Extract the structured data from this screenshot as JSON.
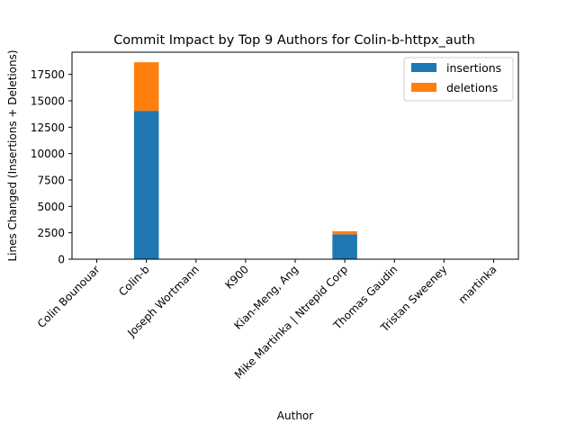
{
  "chart_data": {
    "type": "bar",
    "stacked": true,
    "title": "Commit Impact by Top 9 Authors for Colin-b-httpx_auth",
    "xlabel": "Author",
    "ylabel": "Lines Changed (Insertions + Deletions)",
    "categories": [
      "Colin Bounouar",
      "Colin-b",
      "Joseph Wortmann",
      "K900",
      "Kian-Meng, Ang",
      "Mike Martinka | Ntrepid Corp",
      "Thomas Gaudin",
      "Tristan Sweeney",
      "martinka"
    ],
    "series": [
      {
        "name": "insertions",
        "color": "#1f77b4",
        "values": [
          0,
          14050,
          0,
          0,
          0,
          2350,
          0,
          0,
          0
        ]
      },
      {
        "name": "deletions",
        "color": "#ff7f0e",
        "values": [
          0,
          4600,
          0,
          0,
          0,
          300,
          0,
          0,
          0
        ]
      }
    ],
    "yticks": [
      0,
      2500,
      5000,
      7500,
      10000,
      12500,
      15000,
      17500
    ],
    "ytick_labels": [
      "0",
      "2500",
      "5000",
      "7500",
      "10000",
      "12500",
      "15000",
      "17500"
    ],
    "ylim": [
      0,
      19600
    ],
    "grid": false,
    "legend_position": "top-right"
  }
}
